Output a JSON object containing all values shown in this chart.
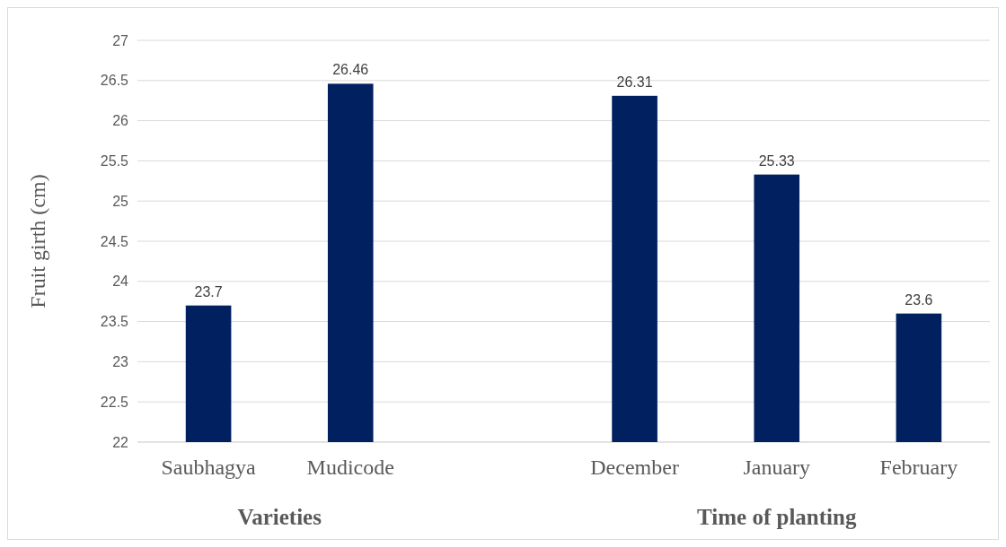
{
  "chart_data": {
    "type": "bar",
    "ylabel": "Fruit girth (cm)",
    "categories": [
      "Saubhagya",
      "Mudicode",
      null,
      "December",
      "January",
      "February"
    ],
    "values": [
      23.7,
      26.46,
      null,
      26.31,
      25.33,
      23.6
    ],
    "color": "#002060",
    "ylim": [
      22,
      27
    ],
    "yticks": [
      22,
      22.5,
      23,
      23.5,
      24,
      24.5,
      25,
      25.5,
      26,
      26.5,
      27
    ],
    "grid": "y",
    "data_labels": true,
    "annotations": [
      "Varieties",
      "Time of planting"
    ]
  }
}
